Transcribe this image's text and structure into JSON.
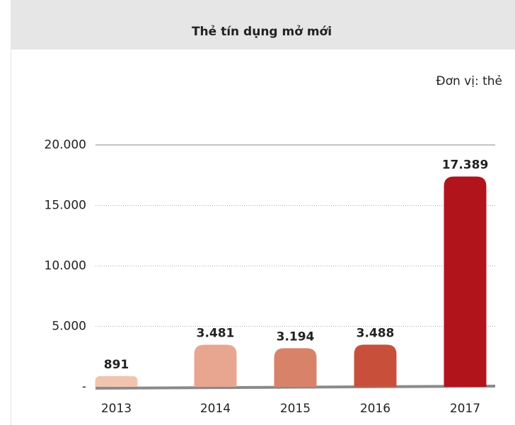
{
  "chart_data": {
    "type": "bar",
    "title": "Thẻ tín dụng mở mới",
    "unit_note": "Đơn vị: thẻ",
    "categories": [
      "2013",
      "2014",
      "2015",
      "2016",
      "2017"
    ],
    "values": [
      891,
      3481,
      3194,
      3488,
      17389
    ],
    "value_labels": [
      "891",
      "3.481",
      "3.194",
      "3.488",
      "17.389"
    ],
    "colors": [
      "#f2c4b0",
      "#e8a690",
      "#d9826a",
      "#c8503a",
      "#b2141c"
    ],
    "ylim": [
      0,
      20000
    ],
    "yticks": [
      {
        "value": 0,
        "label": "-"
      },
      {
        "value": 5000,
        "label": "5.000"
      },
      {
        "value": 10000,
        "label": "10.000"
      },
      {
        "value": 15000,
        "label": "15.000"
      },
      {
        "value": 20000,
        "label": "20.000"
      }
    ],
    "grid": true
  }
}
